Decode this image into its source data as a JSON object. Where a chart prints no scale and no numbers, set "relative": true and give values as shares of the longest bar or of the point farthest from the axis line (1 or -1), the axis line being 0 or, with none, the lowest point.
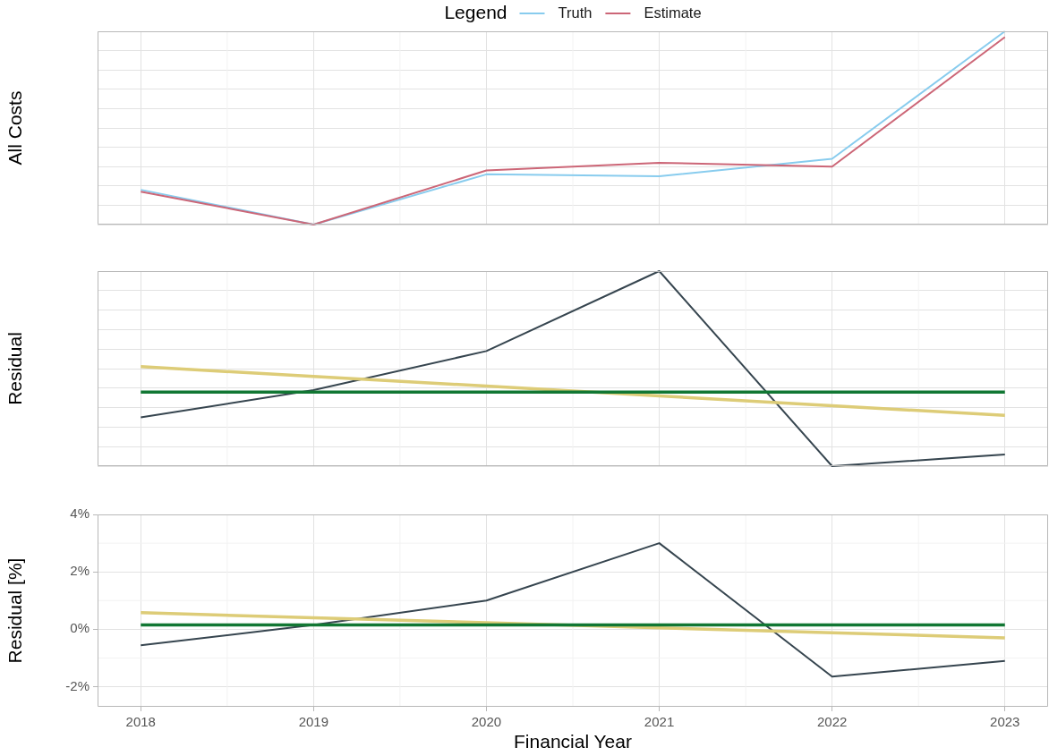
{
  "chart_data": [
    {
      "type": "line",
      "relative": true,
      "ylabel": "All Costs",
      "x": [
        2018,
        2019,
        2020,
        2021,
        2022,
        2023
      ],
      "xlim": [
        2017.75,
        2023.25
      ],
      "xticks": [
        2018,
        2019,
        2020,
        2021,
        2022,
        2023
      ],
      "tick_labels": false,
      "grid": true,
      "legend": "top",
      "legend_title": "Legend",
      "series": [
        {
          "name": "Truth",
          "color": "#88ccee",
          "values": [
            0.18,
            0,
            0.26,
            0.25,
            0.34,
            1
          ]
        },
        {
          "name": "Estimate",
          "color": "#cc6677",
          "values": [
            0.17,
            0,
            0.28,
            0.32,
            0.3,
            0.97
          ]
        }
      ]
    },
    {
      "type": "line",
      "relative": true,
      "ylabel": "Residual",
      "x": [
        2018,
        2019,
        2020,
        2021,
        2022,
        2023
      ],
      "xlim": [
        2017.75,
        2023.25
      ],
      "xticks": [
        2018,
        2019,
        2020,
        2021,
        2022,
        2023
      ],
      "tick_labels": false,
      "grid": true,
      "series": [
        {
          "color": "#36454f",
          "values": [
            0.25,
            0.39,
            0.59,
            1,
            0,
            0.06
          ]
        },
        {
          "color": "#ddcc77",
          "values": [
            0.51,
            0.46,
            0.41,
            0.36,
            0.31,
            0.26
          ]
        },
        {
          "color": "#117733",
          "values": [
            0.38,
            0.38,
            0.38,
            0.38,
            0.38,
            0.38
          ]
        }
      ]
    },
    {
      "type": "line",
      "ylabel": "Residual [%]",
      "xlabel": "Financial Year",
      "x": [
        2018,
        2019,
        2020,
        2021,
        2022,
        2023
      ],
      "xlim": [
        2017.75,
        2023.25
      ],
      "xticks": [
        2018,
        2019,
        2020,
        2021,
        2022,
        2023
      ],
      "ylim": [
        -2.7,
        4
      ],
      "yticks": [
        {
          "value": -2,
          "label": "-2%"
        },
        {
          "value": 0,
          "label": "0%"
        },
        {
          "value": 2,
          "label": "2%"
        },
        {
          "value": 4,
          "label": "4%"
        }
      ],
      "grid": true,
      "series": [
        {
          "color": "#36454f",
          "values": [
            -0.56,
            0.15,
            1.0,
            3.0,
            -1.65,
            -1.1
          ]
        },
        {
          "color": "#ddcc77",
          "values": [
            0.58,
            0.4,
            0.23,
            0.05,
            -0.12,
            -0.3
          ]
        },
        {
          "color": "#117733",
          "values": [
            0.15,
            0.15,
            0.15,
            0.15,
            0.15,
            0.15
          ]
        }
      ]
    }
  ]
}
